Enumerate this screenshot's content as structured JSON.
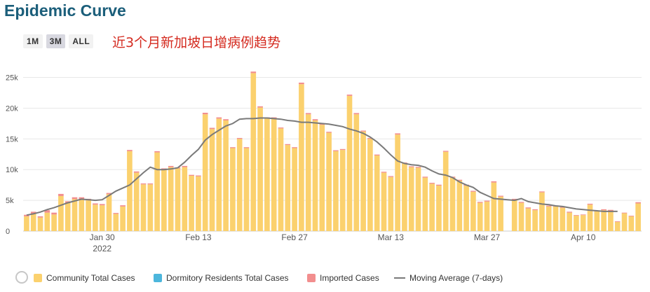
{
  "title": "Epidemic Curve",
  "range_buttons": [
    {
      "label": "1M",
      "active": false
    },
    {
      "label": "3M",
      "active": true
    },
    {
      "label": "ALL",
      "active": false
    }
  ],
  "subtitle": "近3个月新加坡日增病例趋势",
  "colors": {
    "community": "#fbd16e",
    "dormitory": "#4cb6dc",
    "imported": "#f28e8e",
    "moving_avg": "#7a7a7a",
    "title": "#1b5e7a",
    "subtitle": "#d42a1f"
  },
  "chart_data": {
    "type": "bar",
    "start_date": "2022-01-19",
    "ylim": [
      0,
      27000
    ],
    "y_ticks": [
      0,
      5000,
      10000,
      15000,
      20000,
      25000
    ],
    "y_tick_labels": [
      "0",
      "5k",
      "10k",
      "15k",
      "20k",
      "25k"
    ],
    "x_tick_labels": [
      {
        "label": "Jan 30",
        "sublabel": "2022"
      },
      {
        "label": "Feb 13",
        "sublabel": ""
      },
      {
        "label": "Feb 27",
        "sublabel": ""
      },
      {
        "label": "Mar 13",
        "sublabel": ""
      },
      {
        "label": "Mar 27",
        "sublabel": ""
      },
      {
        "label": "Apr 10",
        "sublabel": ""
      }
    ],
    "grid": true,
    "series": [
      {
        "name": "Community Total Cases",
        "values": [
          2400,
          2800,
          2200,
          3000,
          2700,
          5700,
          4600,
          5200,
          5200,
          5000,
          4300,
          4200,
          6000,
          2800,
          4000,
          13000,
          9500,
          7600,
          7600,
          12800,
          10000,
          10400,
          10200,
          10400,
          9000,
          8900,
          19000,
          16600,
          18300,
          18000,
          13500,
          15000,
          13500,
          25700,
          20100,
          18300,
          18300,
          16700,
          14000,
          13500,
          23900,
          19000,
          18000,
          17300,
          16000,
          13000,
          13200,
          22000,
          19000,
          16200,
          15000,
          12300,
          9500,
          8800,
          15700,
          11000,
          10400,
          10300,
          8700,
          7700,
          7400,
          12900,
          8700,
          8200,
          7400,
          6400,
          4600,
          4800,
          7900,
          5600,
          0,
          5100,
          4600,
          3700,
          3400,
          6300,
          4000,
          4000,
          3800,
          3000,
          2500,
          2600,
          4300,
          3200,
          3400,
          3300,
          1500,
          2900,
          2400,
          4500
        ]
      },
      {
        "name": "Dormitory Residents Total Cases",
        "values": [
          0,
          0,
          0,
          0,
          0,
          0,
          0,
          0,
          0,
          0,
          0,
          0,
          0,
          0,
          0,
          0,
          0,
          0,
          0,
          0,
          0,
          0,
          0,
          0,
          0,
          0,
          0,
          0,
          0,
          0,
          0,
          0,
          0,
          0,
          0,
          0,
          0,
          0,
          0,
          0,
          0,
          0,
          0,
          0,
          0,
          0,
          0,
          0,
          0,
          0,
          0,
          0,
          0,
          0,
          0,
          0,
          0,
          0,
          0,
          0,
          0,
          0,
          0,
          0,
          0,
          0,
          0,
          0,
          0,
          0,
          0,
          0,
          0,
          0,
          0,
          0,
          0,
          0,
          0,
          0,
          0,
          0,
          0,
          0,
          0,
          0,
          0,
          0,
          0,
          0
        ]
      },
      {
        "name": "Imported Cases",
        "values": [
          250,
          350,
          200,
          400,
          300,
          350,
          250,
          300,
          300,
          250,
          200,
          200,
          200,
          150,
          200,
          200,
          200,
          150,
          150,
          200,
          200,
          200,
          150,
          200,
          150,
          150,
          250,
          200,
          200,
          200,
          150,
          150,
          150,
          250,
          200,
          200,
          200,
          150,
          150,
          150,
          250,
          200,
          200,
          150,
          150,
          150,
          150,
          200,
          200,
          150,
          150,
          150,
          150,
          150,
          200,
          150,
          150,
          150,
          150,
          150,
          150,
          150,
          150,
          150,
          150,
          150,
          150,
          150,
          200,
          150,
          0,
          150,
          150,
          150,
          150,
          150,
          150,
          150,
          150,
          150,
          100,
          100,
          150,
          150,
          150,
          150,
          100,
          100,
          100,
          200
        ]
      }
    ],
    "moving_average": {
      "name": "Moving Average (7-days)",
      "values": [
        2600,
        2800,
        3100,
        3500,
        3800,
        4200,
        4600,
        4900,
        5200,
        5100,
        5000,
        5100,
        5800,
        6500,
        7000,
        7500,
        8500,
        9500,
        10400,
        10000,
        10000,
        10100,
        10300,
        11200,
        12300,
        13300,
        14800,
        15700,
        16400,
        17100,
        17500,
        18200,
        18300,
        18300,
        18400,
        18400,
        18300,
        18200,
        18000,
        17900,
        17700,
        17700,
        17600,
        17500,
        17400,
        17200,
        17000,
        16600,
        16300,
        15900,
        15300,
        14500,
        13500,
        12400,
        11400,
        11000,
        10800,
        10700,
        10400,
        9800,
        9300,
        9100,
        8700,
        8000,
        7500,
        7100,
        6300,
        5800,
        5300,
        5200,
        5100,
        5000,
        5300,
        4800,
        4600,
        4400,
        4300,
        4100,
        4000,
        3800,
        3600,
        3500,
        3400,
        3300,
        3200,
        3200,
        3200
      ]
    }
  },
  "legend": {
    "community": "Community Total Cases",
    "dormitory": "Dormitory Residents Total Cases",
    "imported": "Imported Cases",
    "moving_avg": "Moving Average (7-days)"
  }
}
